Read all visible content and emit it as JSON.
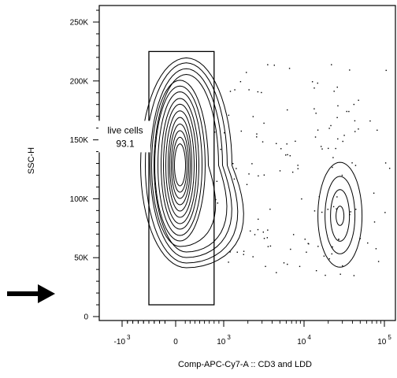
{
  "chart_data": {
    "type": "contour",
    "title": "",
    "xlabel": "Comp-APC-Cy7-A :: CD3 and LDD",
    "ylabel": "SSC-H",
    "x_scale": "biexponential",
    "xlim": [
      -1200,
      120000
    ],
    "ylim": [
      0,
      262144
    ],
    "y_ticks": [
      {
        "value": 0,
        "label": "0"
      },
      {
        "value": 50000,
        "label": "50K"
      },
      {
        "value": 100000,
        "label": "100K"
      },
      {
        "value": 150000,
        "label": "150K"
      },
      {
        "value": 200000,
        "label": "200K"
      },
      {
        "value": 250000,
        "label": "250K"
      }
    ],
    "x_ticks": [
      {
        "value": -1000,
        "base": "-10",
        "exp": "3"
      },
      {
        "value": 0,
        "base": "0",
        "exp": ""
      },
      {
        "value": 1000,
        "base": "10",
        "exp": "3"
      },
      {
        "value": 10000,
        "base": "10",
        "exp": "4"
      },
      {
        "value": 100000,
        "base": "10",
        "exp": "5"
      }
    ],
    "populations": [
      {
        "center_x": 90,
        "center_y": 135000,
        "spread": "large, dense"
      },
      {
        "center_x": 28000,
        "center_y": 80000,
        "spread": "small"
      }
    ],
    "gates": [
      {
        "name": "live cells",
        "value": "93.1",
        "x_range": [
          -500,
          800
        ],
        "y_range": [
          10000,
          225000
        ]
      }
    ],
    "annotation_arrow": {
      "direction": "right",
      "at_y": 20000
    }
  }
}
